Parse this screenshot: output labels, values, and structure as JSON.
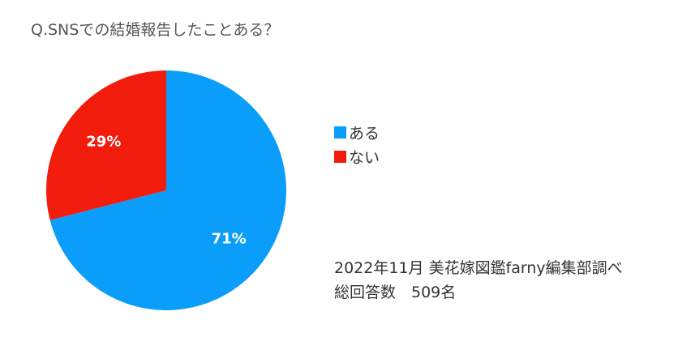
{
  "chart_data": {
    "type": "pie",
    "title": "Q.SNSでの結婚報告したことある？",
    "categories": [
      "ある",
      "ない"
    ],
    "values": [
      71,
      29
    ],
    "labels": [
      "71%",
      "29%"
    ],
    "colors": [
      "#0A9EFA",
      "#F21C0D"
    ],
    "legend": "right"
  },
  "footnote": {
    "source": "2022年11月 美花嫁図鑑farny編集部調べ",
    "total": "総回答数　509名"
  }
}
